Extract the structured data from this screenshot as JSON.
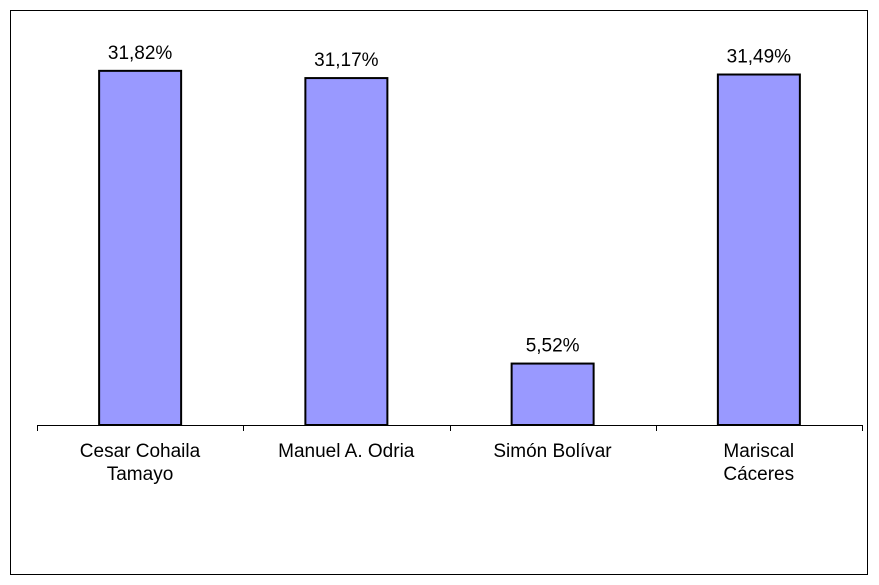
{
  "chart_data": {
    "type": "bar",
    "categories": [
      "Cesar Cohaila\nTamayo",
      "Manuel A. Odria",
      "Simón Bolívar",
      "Mariscal\nCáceres"
    ],
    "values": [
      31.82,
      31.17,
      5.52,
      31.49
    ],
    "value_labels": [
      "31,82%",
      "31,17%",
      "5,52%",
      "31,49%"
    ],
    "color": "#9999ff"
  }
}
